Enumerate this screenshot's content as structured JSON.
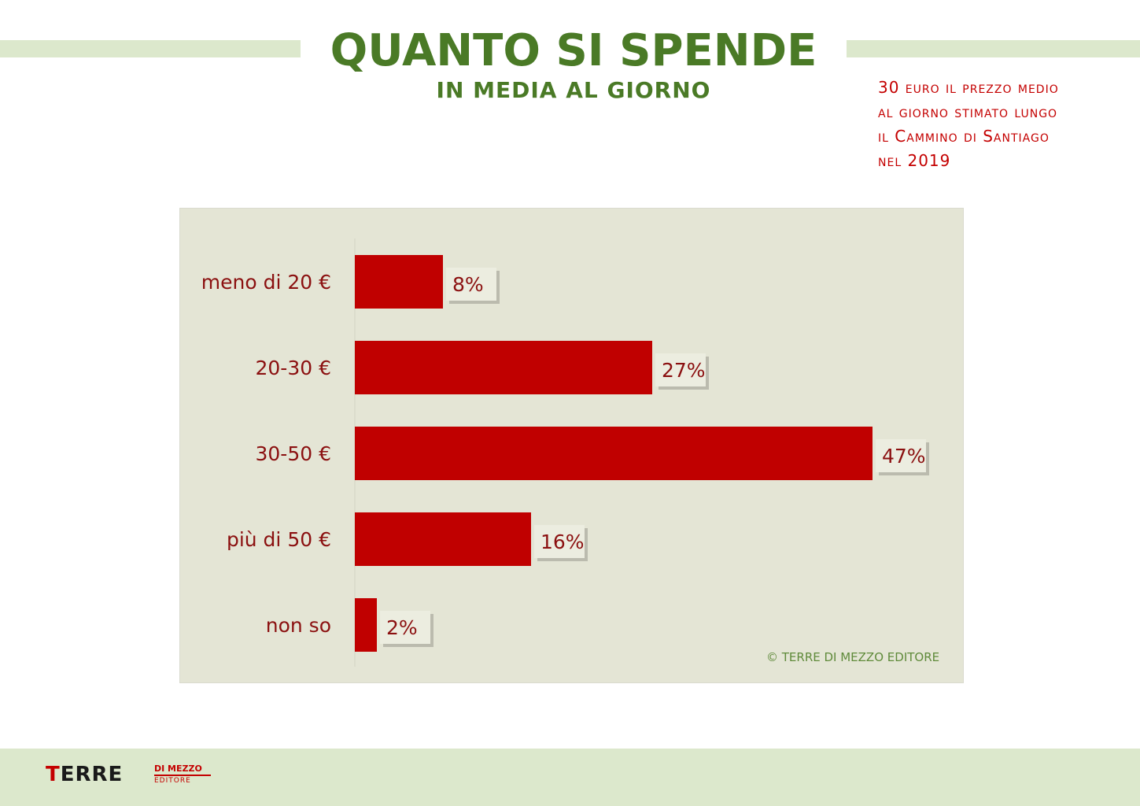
{
  "header": {
    "title": "QUANTO SI SPENDE",
    "subtitle": "IN MEDIA AL GIORNO"
  },
  "note": {
    "lines": [
      "30 euro il prezzo medio",
      "al giorno stimato lungo",
      "il Cammino di Santiago",
      "nel 2019"
    ]
  },
  "chart_data": {
    "type": "bar",
    "orientation": "horizontal",
    "categories": [
      "meno di 20 €",
      "20-30 €",
      "30-50 €",
      "più di 50 €",
      "non so"
    ],
    "values": [
      8,
      27,
      47,
      16,
      2
    ],
    "value_labels": [
      "8%",
      "27%",
      "47%",
      "16%",
      "2%"
    ],
    "unit": "%",
    "xlim": [
      0,
      47
    ],
    "grid": false,
    "legend": "none",
    "bar_color": "#c00000",
    "label_color": "#8b1010"
  },
  "credit": "© TERRE DI MEZZO EDITORE",
  "footer": {
    "logo_main_first": "T",
    "logo_main_rest": "ERRE",
    "logo_top": "DI MEZZO",
    "logo_bottom": "EDITORE"
  },
  "colors": {
    "title_green": "#4a7a26",
    "note_red": "#c40000",
    "band_green": "#dce8cc",
    "panel_bg": "#e4e5d5"
  }
}
